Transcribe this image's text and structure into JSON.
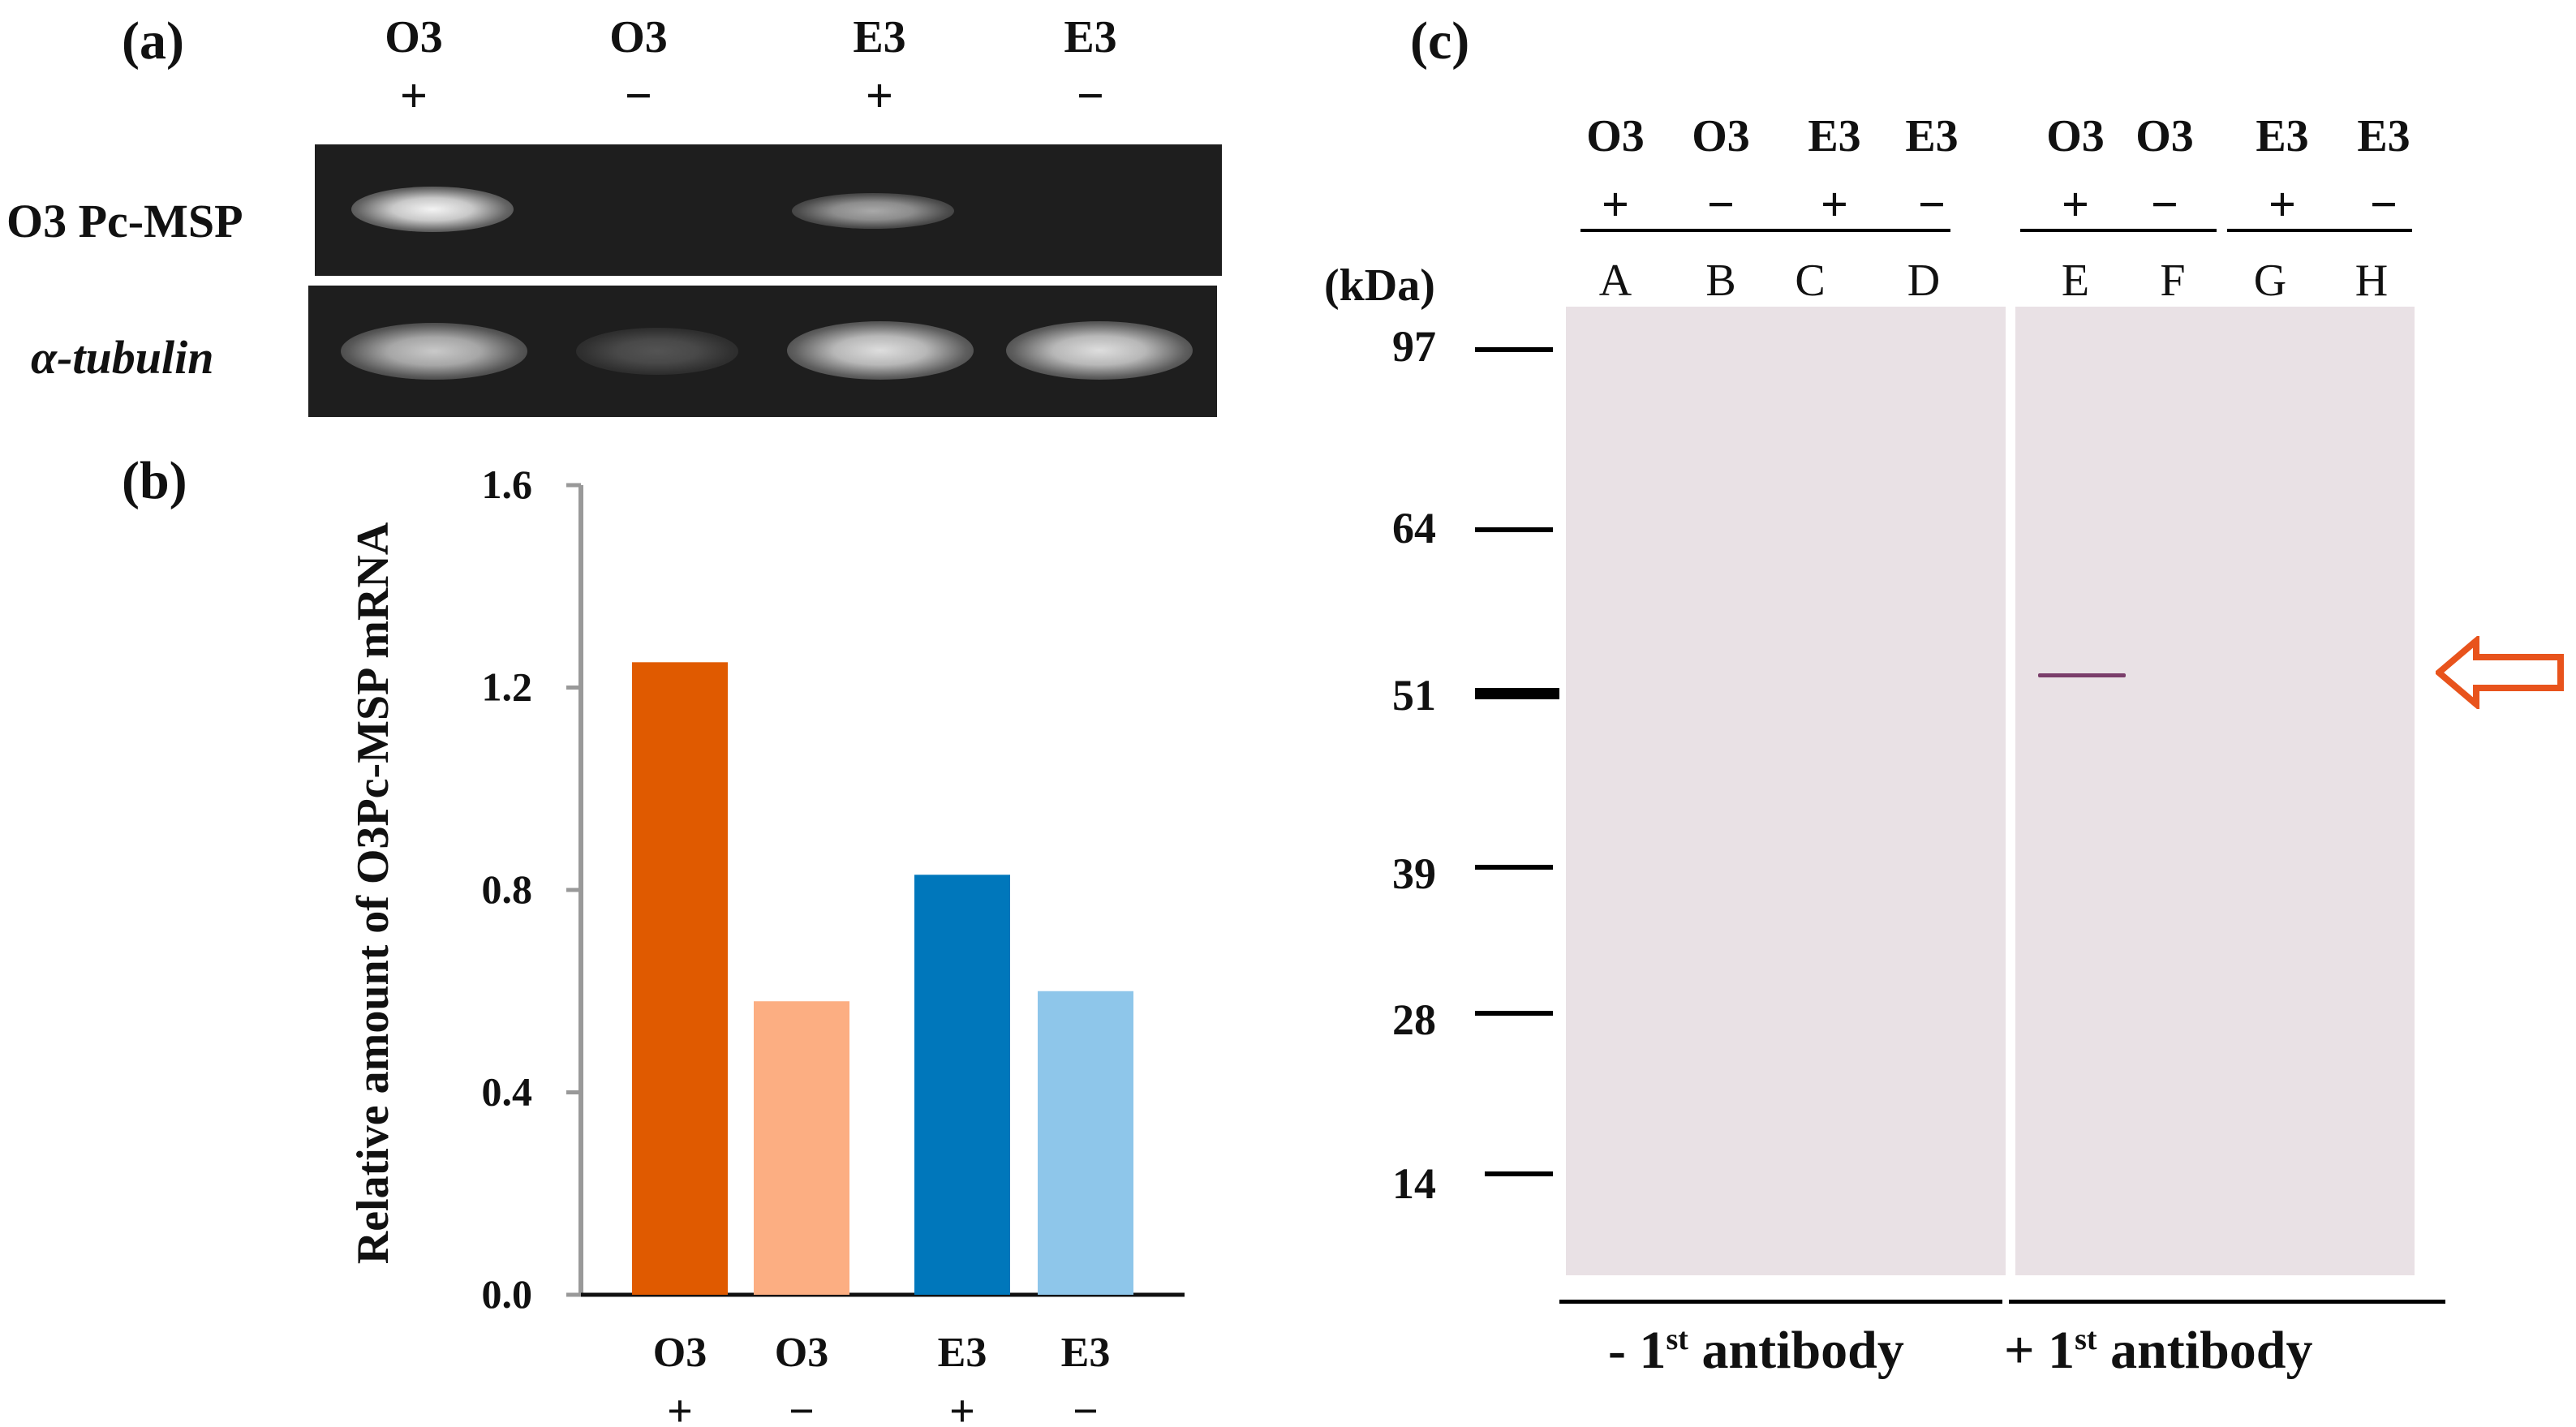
{
  "panel_a": {
    "label": "(a)",
    "lanes": [
      {
        "sample": "O3",
        "treatment": "+"
      },
      {
        "sample": "O3",
        "treatment": "−"
      },
      {
        "sample": "E3",
        "treatment": "+"
      },
      {
        "sample": "E3",
        "treatment": "−"
      }
    ],
    "rows": [
      "O3 Pc-MSP",
      "α-tubulin"
    ]
  },
  "panel_b": {
    "label": "(b)",
    "chart_data": {
      "type": "bar",
      "categories": [
        "O3 +",
        "O3 −",
        "E3 +",
        "E3 −"
      ],
      "category_lines": [
        [
          "O3",
          "+"
        ],
        [
          "O3",
          "−"
        ],
        [
          "E3",
          "+"
        ],
        [
          "E3",
          "−"
        ]
      ],
      "values": [
        1.25,
        0.58,
        0.83,
        0.6
      ],
      "colors": [
        "#e05a00",
        "#fcae82",
        "#0077bb",
        "#8ec6ea"
      ],
      "ylabel": "Relative amount of  O3Pc-MSP mRNA",
      "ylim": [
        0,
        1.6
      ],
      "yticks": [
        "0.0",
        "0.4",
        "0.8",
        "1.2",
        "1.6"
      ],
      "grid": false
    }
  },
  "panel_c": {
    "label": "(c)",
    "unit": "(kDa)",
    "markers": [
      "97",
      "64",
      "51",
      "39",
      "28",
      "14"
    ],
    "lanes": [
      {
        "sample": "O3",
        "treatment": "+",
        "lane": "A"
      },
      {
        "sample": "O3",
        "treatment": "−",
        "lane": "B"
      },
      {
        "sample": "E3",
        "treatment": "+",
        "lane": "C"
      },
      {
        "sample": "E3",
        "treatment": "−",
        "lane": "D"
      },
      {
        "sample": "O3",
        "treatment": "+",
        "lane": "E"
      },
      {
        "sample": "O3",
        "treatment": "−",
        "lane": "F"
      },
      {
        "sample": "E3",
        "treatment": "+",
        "lane": "G"
      },
      {
        "sample": "E3",
        "treatment": "−",
        "lane": "H"
      }
    ],
    "group_left": {
      "prefix": "- 1",
      "sup": "st",
      "suffix": " antibody"
    },
    "group_right": {
      "prefix": "+ 1",
      "sup": "st",
      "suffix": " antibody"
    },
    "arrow_color": "#e8531c"
  }
}
